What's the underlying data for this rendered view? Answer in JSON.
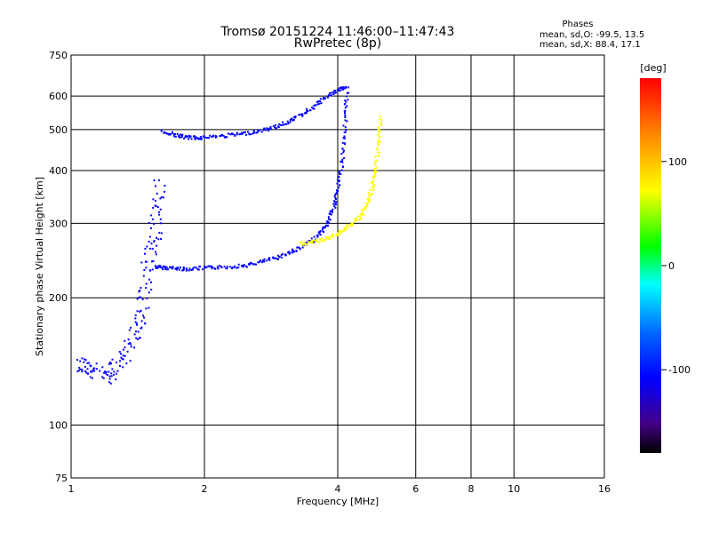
{
  "chart_data": {
    "type": "scatter",
    "title": "Tromsø 20151224 11:46:00–11:47:43",
    "subtitle": "RwPretec (8p)",
    "xlabel": "Frequency [MHz]",
    "ylabel": "Stationary phase Virtual Height [km]",
    "x_scale": "log",
    "y_scale": "log",
    "xlim": [
      1,
      16
    ],
    "ylim": [
      75,
      750
    ],
    "x_ticks": [
      "1",
      "2",
      "4",
      "6",
      "8",
      "10",
      "16"
    ],
    "y_ticks": [
      "75",
      "100",
      "200",
      "300",
      "400",
      "500",
      "600",
      "750"
    ],
    "grid": true,
    "stats": {
      "heading": "Phases",
      "o_line": "mean, sd,O:  -99.5, 13.5",
      "x_line": "mean, sd,X:  88.4, 17.1"
    },
    "colorbar": {
      "label": "[deg]",
      "range": [
        -180,
        180
      ],
      "ticks": [
        "100",
        "0",
        "-100"
      ],
      "tick_values": [
        100,
        0,
        -100
      ]
    },
    "traces": [
      {
        "desc": "O-mode F2 lower branch (blue)",
        "phase": -100,
        "points": [
          [
            1.55,
            238
          ],
          [
            1.6,
            237
          ],
          [
            1.7,
            236
          ],
          [
            1.8,
            235
          ],
          [
            1.95,
            236
          ],
          [
            2.1,
            237
          ],
          [
            2.3,
            238
          ],
          [
            2.5,
            240
          ],
          [
            2.7,
            245
          ],
          [
            2.9,
            250
          ],
          [
            3.1,
            257
          ],
          [
            3.3,
            265
          ],
          [
            3.5,
            275
          ],
          [
            3.7,
            290
          ],
          [
            3.8,
            305
          ],
          [
            3.9,
            330
          ],
          [
            3.98,
            360
          ],
          [
            4.05,
            400
          ],
          [
            4.1,
            460
          ],
          [
            4.15,
            540
          ],
          [
            4.18,
            620
          ]
        ]
      },
      {
        "desc": "O-mode F-layer upper trace (blue)",
        "phase": -100,
        "points": [
          [
            1.6,
            498
          ],
          [
            1.7,
            488
          ],
          [
            1.8,
            482
          ],
          [
            1.9,
            480
          ],
          [
            2.0,
            482
          ],
          [
            2.2,
            485
          ],
          [
            2.4,
            490
          ],
          [
            2.6,
            496
          ],
          [
            2.8,
            505
          ],
          [
            3.0,
            518
          ],
          [
            3.2,
            535
          ],
          [
            3.4,
            555
          ],
          [
            3.6,
            580
          ],
          [
            3.8,
            605
          ],
          [
            4.0,
            625
          ],
          [
            4.2,
            630
          ]
        ]
      },
      {
        "desc": "X-mode F2 trace (yellow)",
        "phase": 100,
        "points": [
          [
            3.3,
            270
          ],
          [
            3.5,
            272
          ],
          [
            3.7,
            276
          ],
          [
            3.9,
            282
          ],
          [
            4.1,
            290
          ],
          [
            4.3,
            300
          ],
          [
            4.5,
            315
          ],
          [
            4.65,
            335
          ],
          [
            4.75,
            360
          ],
          [
            4.82,
            390
          ],
          [
            4.88,
            430
          ],
          [
            4.93,
            480
          ],
          [
            4.97,
            540
          ]
        ]
      },
      {
        "desc": "Low-altitude echo cloud (blue)",
        "phase": -100,
        "points": [
          [
            1.05,
            140
          ],
          [
            1.1,
            135
          ],
          [
            1.2,
            130
          ],
          [
            1.3,
            145
          ],
          [
            1.4,
            165
          ],
          [
            1.45,
            200
          ],
          [
            1.5,
            250
          ],
          [
            1.55,
            300
          ],
          [
            1.58,
            380
          ]
        ]
      }
    ]
  }
}
